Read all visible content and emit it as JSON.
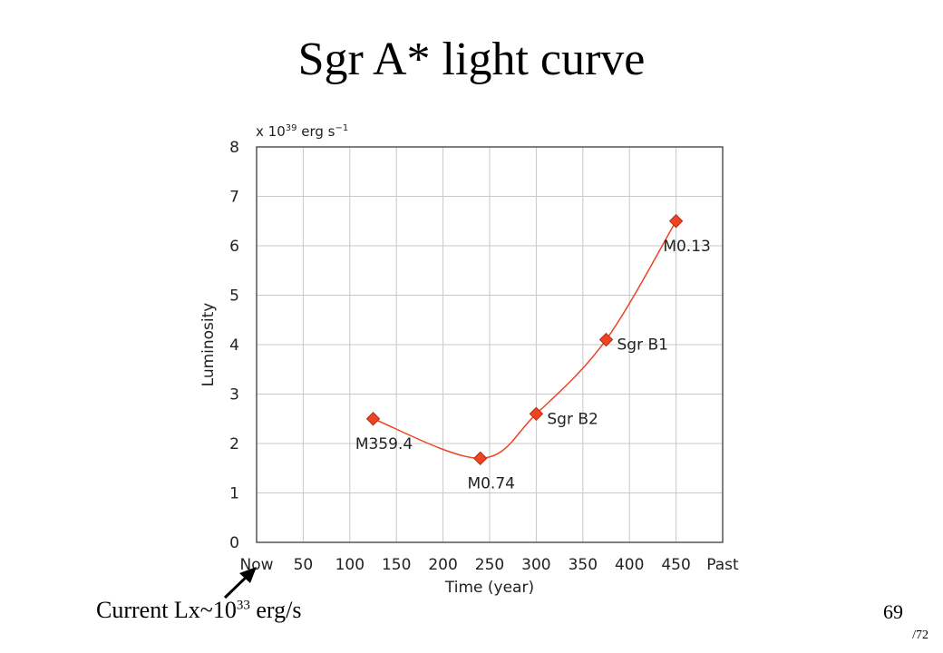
{
  "slide": {
    "title": "Sgr A* light curve",
    "note_prefix": "Current Lx~10",
    "note_exponent": "33",
    "note_suffix": " erg/s",
    "page_number": "69",
    "page_total": "/72"
  },
  "chart_data": {
    "type": "line",
    "title": "",
    "unit_prefix": "x 10",
    "unit_exponent": "39",
    "unit_suffix": " erg s",
    "unit_suffix_exp": "−1",
    "ylabel": "Luminosity",
    "xlabel": "Time (year)",
    "xlim": [
      0,
      500
    ],
    "ylim": [
      0,
      8
    ],
    "x_ticks": [
      {
        "x": 0,
        "label": "Now"
      },
      {
        "x": 50,
        "label": "50"
      },
      {
        "x": 100,
        "label": "100"
      },
      {
        "x": 150,
        "label": "150"
      },
      {
        "x": 200,
        "label": "200"
      },
      {
        "x": 250,
        "label": "250"
      },
      {
        "x": 300,
        "label": "300"
      },
      {
        "x": 350,
        "label": "350"
      },
      {
        "x": 400,
        "label": "400"
      },
      {
        "x": 450,
        "label": "450"
      },
      {
        "x": 500,
        "label": "Past"
      }
    ],
    "y_ticks": [
      0,
      1,
      2,
      3,
      4,
      5,
      6,
      7,
      8
    ],
    "grid": true,
    "series": [
      {
        "color": "#ee4422",
        "points": [
          {
            "x": 125,
            "y": 2.5,
            "label": "M359.4",
            "label_pos": "below"
          },
          {
            "x": 240,
            "y": 1.7,
            "label": "M0.74",
            "label_pos": "below"
          },
          {
            "x": 300,
            "y": 2.6,
            "label": "Sgr B2",
            "label_pos": "right"
          },
          {
            "x": 375,
            "y": 4.1,
            "label": "Sgr B1",
            "label_pos": "right"
          },
          {
            "x": 450,
            "y": 6.5,
            "label": "M0.13",
            "label_pos": "below"
          }
        ]
      }
    ]
  }
}
